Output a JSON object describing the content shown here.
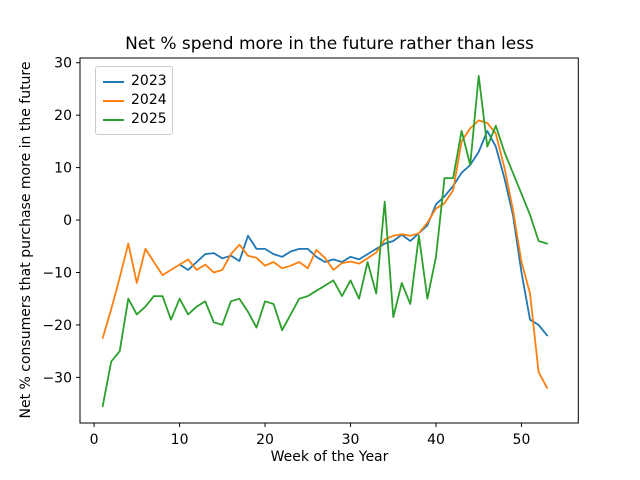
{
  "figure": {
    "kind": "matplotlib-line-figure",
    "background": "#ffffff",
    "text_color": "#000000",
    "spine_color": "#000000"
  },
  "chart_data": {
    "type": "line",
    "title": "Net % spend more in the future rather than less",
    "xlabel": "Week of the Year",
    "ylabel": "Net % consumers that purchase more in the future",
    "xticks": [
      0,
      10,
      20,
      30,
      40,
      50
    ],
    "yticks": [
      -30,
      -20,
      -10,
      0,
      10,
      20,
      30
    ],
    "xlim": [
      -1.65,
      56.65
    ],
    "ylim": [
      -38.7,
      30.9
    ],
    "grid": false,
    "legend": {
      "position": "upper left",
      "entries": [
        "2023",
        "2024",
        "2025"
      ]
    },
    "series": [
      {
        "name": "2023",
        "color": "#1f77b4",
        "weeks": [
          10,
          11,
          12,
          13,
          14,
          15,
          16,
          17,
          18,
          19,
          20,
          21,
          22,
          23,
          24,
          25,
          26,
          27,
          28,
          29,
          30,
          31,
          32,
          33,
          34,
          35,
          36,
          37,
          38,
          39,
          40,
          41,
          42,
          43,
          44,
          45,
          46,
          47,
          48,
          49,
          50,
          51,
          52,
          53
        ],
        "values": [
          -8.5,
          -9.5,
          -8,
          -6.5,
          -6.3,
          -7.3,
          -6.8,
          -7.8,
          -3,
          -5.5,
          -5.5,
          -6.5,
          -7,
          -6,
          -5.5,
          -5.5,
          -7,
          -8,
          -7.5,
          -8,
          -7,
          -7.5,
          -6.5,
          -5.5,
          -4.5,
          -4,
          -2.8,
          -4,
          -2.5,
          -1,
          3,
          4.5,
          6.5,
          9,
          10.5,
          13,
          17,
          14,
          8,
          1,
          -10,
          -19,
          -20,
          -22
        ]
      },
      {
        "name": "2024",
        "color": "#ff7f0e",
        "weeks": [
          1,
          2,
          3,
          4,
          5,
          6,
          7,
          8,
          9,
          10,
          11,
          12,
          13,
          14,
          15,
          16,
          17,
          18,
          19,
          20,
          21,
          22,
          23,
          24,
          25,
          26,
          27,
          28,
          29,
          30,
          31,
          32,
          33,
          34,
          35,
          36,
          37,
          38,
          39,
          40,
          41,
          42,
          43,
          44,
          45,
          46,
          47,
          48,
          49,
          50,
          51,
          52,
          53
        ],
        "values": [
          -22.5,
          -17,
          -11,
          -4.5,
          -12,
          -5.5,
          -8,
          -10.5,
          -9.5,
          -8.5,
          -7.5,
          -9.5,
          -8.5,
          -10,
          -9.5,
          -6.5,
          -4.7,
          -6.8,
          -7.2,
          -8.7,
          -8,
          -9.2,
          -8.7,
          -8,
          -9.2,
          -5.7,
          -7.2,
          -9.5,
          -8.2,
          -7.9,
          -8.3,
          -7.3,
          -6.2,
          -3.7,
          -3,
          -2.7,
          -3,
          -2.5,
          -0.5,
          2.2,
          3.2,
          5.7,
          15,
          17.5,
          19,
          18.5,
          16.5,
          10,
          2,
          -8,
          -14,
          -29,
          -32
        ]
      },
      {
        "name": "2025",
        "color": "#2ca02c",
        "weeks": [
          1,
          2,
          3,
          4,
          5,
          6,
          7,
          8,
          9,
          10,
          11,
          12,
          13,
          14,
          15,
          16,
          17,
          18,
          19,
          20,
          21,
          22,
          23,
          24,
          25,
          26,
          27,
          28,
          29,
          30,
          31,
          32,
          33,
          34,
          35,
          36,
          37,
          38,
          39,
          40,
          41,
          42,
          43,
          44,
          45,
          46,
          47,
          48,
          49,
          50,
          51,
          52,
          53
        ],
        "values": [
          -35.5,
          -27,
          -25,
          -15,
          -18,
          -16.5,
          -14.5,
          -14.5,
          -19,
          -15,
          -18,
          -16.5,
          -15.5,
          -19.5,
          -20,
          -15.5,
          -15,
          -17.5,
          -20.5,
          -15.5,
          -16,
          -21,
          -18,
          -15,
          -14.5,
          -13.5,
          -12.5,
          -11.5,
          -14.5,
          -11.5,
          -15,
          -8,
          -14,
          3.5,
          -18.5,
          -12,
          -16,
          -3,
          -15,
          -7,
          8,
          8,
          17,
          10.5,
          27.5,
          14,
          18,
          13,
          9,
          5,
          1,
          -4,
          -4.5
        ]
      }
    ]
  }
}
